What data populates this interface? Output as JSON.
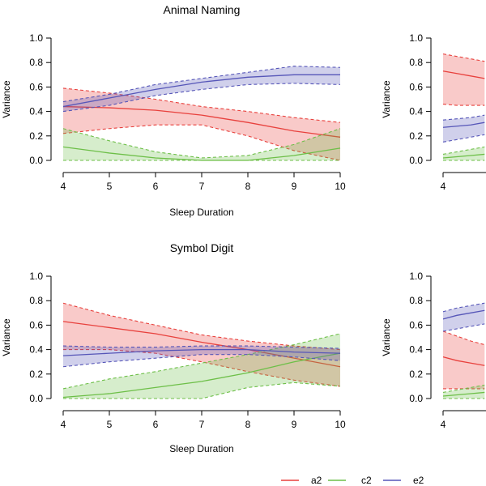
{
  "colors": {
    "a2": "#e8413d",
    "c2": "#6dbf48",
    "e2": "#5656b8",
    "axis": "#000000"
  },
  "legend": {
    "items": [
      {
        "key": "a2",
        "label": "a2",
        "color": "#e8413d"
      },
      {
        "key": "c2",
        "label": "c2",
        "color": "#6dbf48"
      },
      {
        "key": "e2",
        "label": "e2",
        "color": "#5656b8"
      }
    ]
  },
  "chart_data": [
    {
      "type": "line",
      "title": "Animal Naming",
      "xlabel": "Sleep Duration",
      "ylabel": "Variance",
      "xlim": [
        4,
        10
      ],
      "ylim": [
        0,
        1
      ],
      "xticks": [
        "4",
        "5",
        "6",
        "7",
        "8",
        "9",
        "10"
      ],
      "yticks": [
        "0.0",
        "0.2",
        "0.4",
        "0.6",
        "0.8",
        "1.0"
      ],
      "x": [
        4,
        5,
        6,
        7,
        8,
        9,
        10
      ],
      "series": [
        {
          "name": "a2",
          "values": [
            0.44,
            0.43,
            0.41,
            0.37,
            0.31,
            0.24,
            0.19
          ],
          "lower": [
            0.22,
            0.26,
            0.29,
            0.29,
            0.2,
            0.08,
            0.0
          ],
          "upper": [
            0.59,
            0.55,
            0.5,
            0.44,
            0.4,
            0.35,
            0.31
          ]
        },
        {
          "name": "c2",
          "values": [
            0.11,
            0.06,
            0.02,
            0.0,
            0.0,
            0.04,
            0.1
          ],
          "lower": [
            0.0,
            0.0,
            0.0,
            0.0,
            0.0,
            0.0,
            0.0
          ],
          "upper": [
            0.26,
            0.16,
            0.07,
            0.02,
            0.04,
            0.13,
            0.26
          ]
        },
        {
          "name": "e2",
          "values": [
            0.44,
            0.51,
            0.58,
            0.64,
            0.68,
            0.7,
            0.7
          ],
          "lower": [
            0.4,
            0.45,
            0.53,
            0.58,
            0.62,
            0.63,
            0.62
          ],
          "upper": [
            0.48,
            0.54,
            0.62,
            0.67,
            0.72,
            0.77,
            0.76
          ]
        }
      ]
    },
    {
      "type": "line",
      "title": "",
      "xlabel": "",
      "ylabel": "Variance",
      "xlim": [
        4,
        10
      ],
      "ylim": [
        0,
        1
      ],
      "xticks": [
        "4"
      ],
      "yticks": [
        "0.0",
        "0.2",
        "0.4",
        "0.6",
        "0.8",
        "1.0"
      ],
      "x": [
        4,
        4.3,
        4.6,
        4.9
      ],
      "series": [
        {
          "name": "a2",
          "values": [
            0.73,
            0.71,
            0.69,
            0.67
          ],
          "lower": [
            0.46,
            0.45,
            0.45,
            0.45
          ],
          "upper": [
            0.87,
            0.85,
            0.83,
            0.81
          ]
        },
        {
          "name": "c2",
          "values": [
            0.02,
            0.03,
            0.04,
            0.05
          ],
          "lower": [
            0.0,
            0.0,
            0.0,
            0.0
          ],
          "upper": [
            0.05,
            0.07,
            0.09,
            0.11
          ]
        },
        {
          "name": "e2",
          "values": [
            0.27,
            0.28,
            0.29,
            0.31
          ],
          "lower": [
            0.15,
            0.17,
            0.19,
            0.21
          ],
          "upper": [
            0.33,
            0.34,
            0.35,
            0.37
          ]
        }
      ]
    },
    {
      "type": "line",
      "title": "Symbol Digit",
      "xlabel": "Sleep Duration",
      "ylabel": "Variance",
      "xlim": [
        4,
        10
      ],
      "ylim": [
        0,
        1
      ],
      "xticks": [
        "4",
        "5",
        "6",
        "7",
        "8",
        "9",
        "10"
      ],
      "yticks": [
        "0.0",
        "0.2",
        "0.4",
        "0.6",
        "0.8",
        "1.0"
      ],
      "x": [
        4,
        5,
        6,
        7,
        8,
        9,
        10
      ],
      "series": [
        {
          "name": "a2",
          "values": [
            0.63,
            0.58,
            0.53,
            0.46,
            0.4,
            0.33,
            0.26
          ],
          "lower": [
            0.4,
            0.4,
            0.37,
            0.3,
            0.22,
            0.15,
            0.1
          ],
          "upper": [
            0.78,
            0.68,
            0.6,
            0.52,
            0.47,
            0.43,
            0.4
          ]
        },
        {
          "name": "c2",
          "values": [
            0.01,
            0.04,
            0.09,
            0.14,
            0.21,
            0.3,
            0.37
          ],
          "lower": [
            0.0,
            0.0,
            0.0,
            0.0,
            0.09,
            0.13,
            0.1
          ],
          "upper": [
            0.08,
            0.16,
            0.22,
            0.29,
            0.36,
            0.44,
            0.53
          ]
        },
        {
          "name": "e2",
          "values": [
            0.35,
            0.37,
            0.39,
            0.4,
            0.4,
            0.38,
            0.37
          ],
          "lower": [
            0.26,
            0.3,
            0.33,
            0.36,
            0.36,
            0.34,
            0.31
          ],
          "upper": [
            0.43,
            0.42,
            0.42,
            0.43,
            0.43,
            0.42,
            0.41
          ]
        }
      ]
    },
    {
      "type": "line",
      "title": "",
      "xlabel": "",
      "ylabel": "Variance",
      "xlim": [
        4,
        10
      ],
      "ylim": [
        0,
        1
      ],
      "xticks": [
        "4"
      ],
      "yticks": [
        "0.0",
        "0.2",
        "0.4",
        "0.6",
        "0.8",
        "1.0"
      ],
      "x": [
        4,
        4.3,
        4.6,
        4.9
      ],
      "series": [
        {
          "name": "a2",
          "values": [
            0.34,
            0.31,
            0.29,
            0.27
          ],
          "lower": [
            0.08,
            0.08,
            0.08,
            0.08
          ],
          "upper": [
            0.55,
            0.51,
            0.47,
            0.44
          ]
        },
        {
          "name": "c2",
          "values": [
            0.02,
            0.03,
            0.04,
            0.05
          ],
          "lower": [
            0.0,
            0.0,
            0.0,
            0.0
          ],
          "upper": [
            0.05,
            0.07,
            0.09,
            0.11
          ]
        },
        {
          "name": "e2",
          "values": [
            0.65,
            0.68,
            0.7,
            0.72
          ],
          "lower": [
            0.55,
            0.57,
            0.59,
            0.61
          ],
          "upper": [
            0.71,
            0.74,
            0.76,
            0.78
          ]
        }
      ]
    }
  ]
}
